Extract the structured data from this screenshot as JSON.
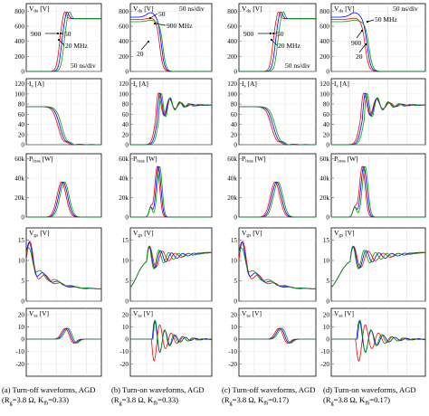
{
  "chart_data": {
    "type": "line",
    "x_unit_label": "50 ns/div",
    "rows": [
      {
        "ylabel": "V<sub>ds</sub> [V]",
        "ticks": [
          "0",
          "200",
          "400",
          "600",
          "800"
        ],
        "ylim": [
          0,
          900
        ]
      },
      {
        "ylabel": "I<sub>s</sub> [A]",
        "ticks": [
          "0",
          "20",
          "40",
          "60",
          "80",
          "100",
          "120"
        ],
        "ylim": [
          0,
          130
        ]
      },
      {
        "ylabel": "P<sub>loss</sub> [W]",
        "ticks": [
          "0",
          "20k",
          "40k",
          "60k"
        ],
        "ylim": [
          0,
          65000
        ]
      },
      {
        "ylabel": "V<sub>gs</sub> [V]",
        "ticks": [
          "0",
          "5",
          "10",
          "15"
        ],
        "ylim": [
          0,
          18
        ]
      },
      {
        "ylabel": "V<sub>ss</sub> [V]",
        "ticks": [
          "-20",
          "-10",
          "0",
          "10",
          "20"
        ],
        "ylim": [
          -30,
          25
        ]
      }
    ],
    "series": [
      {
        "name": "20 MHz",
        "color": "#ff0000"
      },
      {
        "name": "50",
        "color": "#0000ff"
      },
      {
        "name": "900",
        "color": "#00a000"
      }
    ],
    "panels": [
      {
        "id": "a",
        "caption": [
          "(a) Turn-off waveforms, AGD",
          "(Rg=3.8 Ω, Kfb=0.33)"
        ],
        "annotations": [
          "900",
          "50",
          "20 MHz",
          "50 ns/div"
        ]
      },
      {
        "id": "b",
        "caption": [
          "(b) Turn-on waveforms, AGD",
          "(Rg=3.8 Ω, Kfb=0.33)"
        ],
        "annotations": [
          "50 ns/div",
          "50",
          "900 MHz",
          "20"
        ]
      },
      {
        "id": "c",
        "caption": [
          "(c) Turn-off waveforms, AGD",
          "(Rg=3.8 Ω, Kfb=0.17)"
        ],
        "annotations": [
          "900",
          "50",
          "20 MHz",
          "50 ns/div"
        ]
      },
      {
        "id": "d",
        "caption": [
          "(d) Turn-on waveforms, AGD",
          "(Rg=3.8 Ω, Kfb=0.17)"
        ],
        "annotations": [
          "50 ns/div",
          "50 MHz",
          "900",
          "20"
        ]
      }
    ]
  }
}
